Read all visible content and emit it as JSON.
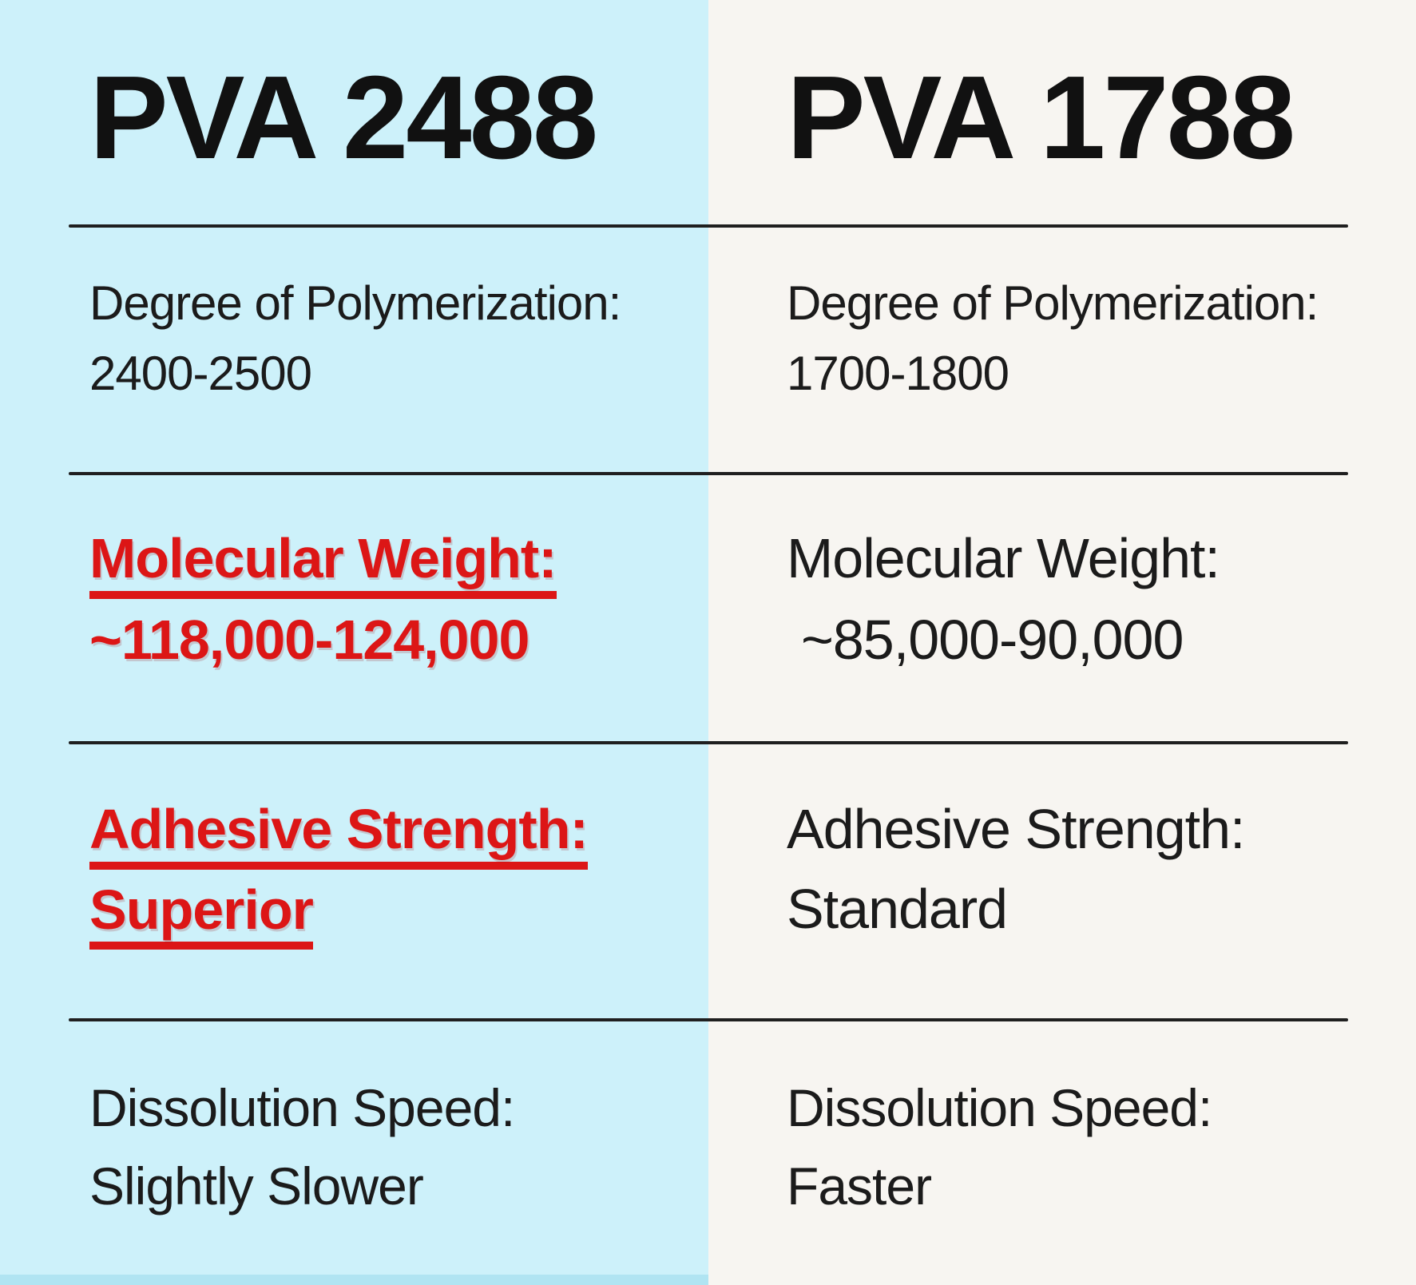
{
  "columns": [
    {
      "header": "PVA 2488",
      "rows": [
        {
          "label": "Degree of Polymerization:",
          "value": "2400-2500",
          "highlighted": false
        },
        {
          "label": "Molecular Weight:",
          "value": "~118,000-124,000",
          "highlighted": true
        },
        {
          "label": "Adhesive Strength:",
          "value": "Superior",
          "highlighted": true
        },
        {
          "label": "Dissolution Speed:",
          "value": "Slightly Slower",
          "highlighted": false
        }
      ]
    },
    {
      "header": "PVA 1788",
      "rows": [
        {
          "label": "Degree of Polymerization:",
          "value": "1700-1800",
          "highlighted": false
        },
        {
          "label": "Molecular Weight:",
          "value": "~85,000-90,000",
          "highlighted": false
        },
        {
          "label": "Adhesive Strength:",
          "value": "Standard",
          "highlighted": false
        },
        {
          "label": "Dissolution Speed:",
          "value": "Faster",
          "highlighted": false
        }
      ]
    }
  ],
  "chart_data": {
    "type": "table",
    "columns": [
      "PVA 2488",
      "PVA 1788"
    ],
    "rows": [
      {
        "attribute": "Degree of Polymerization",
        "pva_2488": "2400-2500",
        "pva_1788": "1700-1800"
      },
      {
        "attribute": "Molecular Weight",
        "pva_2488": "~118,000-124,000",
        "pva_1788": "~85,000-90,000"
      },
      {
        "attribute": "Adhesive Strength",
        "pva_2488": "Superior",
        "pva_1788": "Standard"
      },
      {
        "attribute": "Dissolution Speed",
        "pva_2488": "Slightly Slower",
        "pva_1788": "Faster"
      }
    ],
    "highlighted_cells": [
      "PVA 2488 / Molecular Weight",
      "PVA 2488 / Adhesive Strength"
    ],
    "title": "",
    "legend_position": "none",
    "grid": "horizontal-dividers"
  },
  "colors": {
    "left_column_background": "#cdf1fa",
    "right_column_background": "#f7f5f1",
    "highlight_red": "#dc1616",
    "text_black": "#1b1b1b",
    "divider_line": "#1f1f1f"
  }
}
